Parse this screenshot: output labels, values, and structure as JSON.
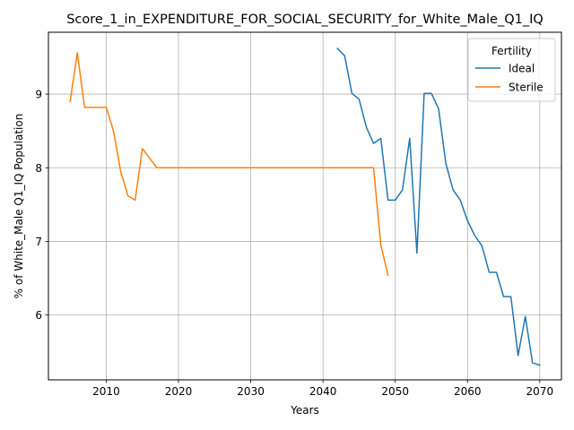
{
  "chart_data": {
    "type": "line",
    "title": "Score_1_in_EXPENDITURE_FOR_SOCIAL_SECURITY_for_White_Male_Q1_IQ",
    "xlabel": "Years",
    "ylabel": "% of White_Male Q1_IQ Population",
    "xlim": [
      2002,
      2073
    ],
    "ylim": [
      5.12,
      9.84
    ],
    "xticks": [
      2010,
      2020,
      2030,
      2040,
      2050,
      2060,
      2070
    ],
    "yticks": [
      6,
      7,
      8,
      9
    ],
    "grid": true,
    "legend": {
      "title": "Fertility",
      "position": "top-right"
    },
    "series": [
      {
        "name": "Ideal",
        "color": "#1f77b4",
        "x": [
          2042,
          2043,
          2044,
          2045,
          2046,
          2047,
          2048,
          2049,
          2050,
          2051,
          2052,
          2053,
          2054,
          2055,
          2056,
          2057,
          2058,
          2059,
          2060,
          2061,
          2062,
          2063,
          2064,
          2065,
          2066,
          2067,
          2068,
          2069,
          2070
        ],
        "y": [
          9.62,
          9.52,
          9.01,
          8.93,
          8.55,
          8.33,
          8.4,
          7.56,
          7.56,
          7.7,
          8.4,
          6.84,
          9.01,
          9.01,
          8.8,
          8.06,
          7.7,
          7.56,
          7.28,
          7.08,
          6.94,
          6.58,
          6.58,
          6.25,
          6.25,
          5.45,
          5.98,
          5.35,
          5.32
        ]
      },
      {
        "name": "Sterile",
        "color": "#ff7f0e",
        "x": [
          2005,
          2006,
          2007,
          2008,
          2009,
          2010,
          2011,
          2012,
          2013,
          2014,
          2015,
          2016,
          2017,
          2018,
          2019,
          2020,
          2025,
          2030,
          2035,
          2040,
          2045,
          2046,
          2047,
          2048,
          2049
        ],
        "y": [
          8.9,
          9.56,
          8.82,
          8.82,
          8.82,
          8.82,
          8.5,
          7.95,
          7.62,
          7.56,
          8.26,
          8.13,
          8.0,
          8.0,
          8.0,
          8.0,
          8.0,
          8.0,
          8.0,
          8.0,
          8.0,
          8.0,
          8.0,
          6.95,
          6.54
        ]
      }
    ]
  }
}
